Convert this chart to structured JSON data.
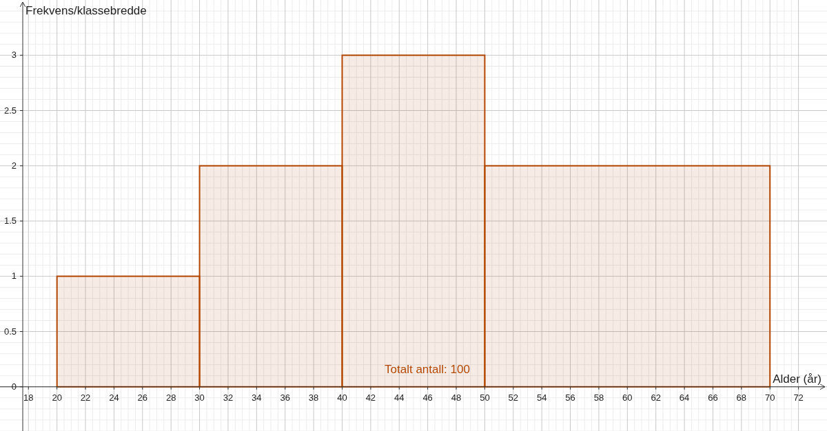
{
  "chart_data": {
    "type": "histogram",
    "xlabel": "Alder (år)",
    "ylabel": "Frekvens/klassebredde",
    "bins": [
      20,
      30,
      40,
      50,
      70
    ],
    "values": [
      1,
      2,
      3,
      2
    ],
    "color": "#b34700",
    "xlim": [
      17.6,
      74
    ],
    "ylim": [
      -0.4,
      3.5
    ],
    "xticks": [
      18,
      20,
      22,
      24,
      26,
      28,
      30,
      32,
      34,
      36,
      38,
      40,
      42,
      44,
      46,
      48,
      50,
      52,
      54,
      56,
      58,
      60,
      62,
      64,
      66,
      68,
      70,
      72
    ],
    "yticks": [
      0,
      0.5,
      1,
      1.5,
      2,
      2.5,
      3
    ],
    "grid": true,
    "annotations": [
      "Totalt antall: 100"
    ]
  }
}
